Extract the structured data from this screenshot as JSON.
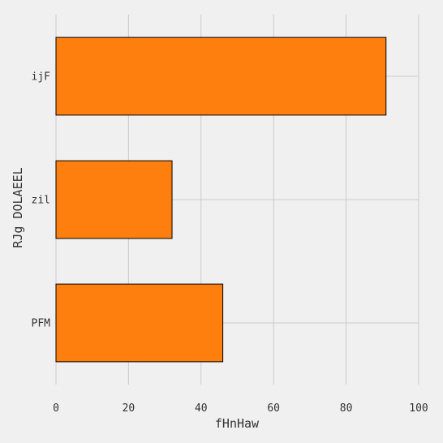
{
  "chart_data": {
    "type": "bar",
    "orientation": "horizontal",
    "title": "",
    "xlabel": "fHnHaw",
    "ylabel": "RJg DOLAEEL",
    "categories": [
      "ijF",
      "zil",
      "PFM"
    ],
    "values": [
      91,
      32,
      46
    ],
    "xlim": [
      0,
      100
    ],
    "xticks": [
      "0",
      "20",
      "40",
      "60",
      "80",
      "100"
    ],
    "grid": true,
    "legend": "none"
  },
  "colors": {
    "background": "#f0f0f0",
    "bar_fill": "#ff7f0e",
    "bar_edge": "#000000",
    "grid": "#cbcbcb",
    "text": "#333333"
  }
}
